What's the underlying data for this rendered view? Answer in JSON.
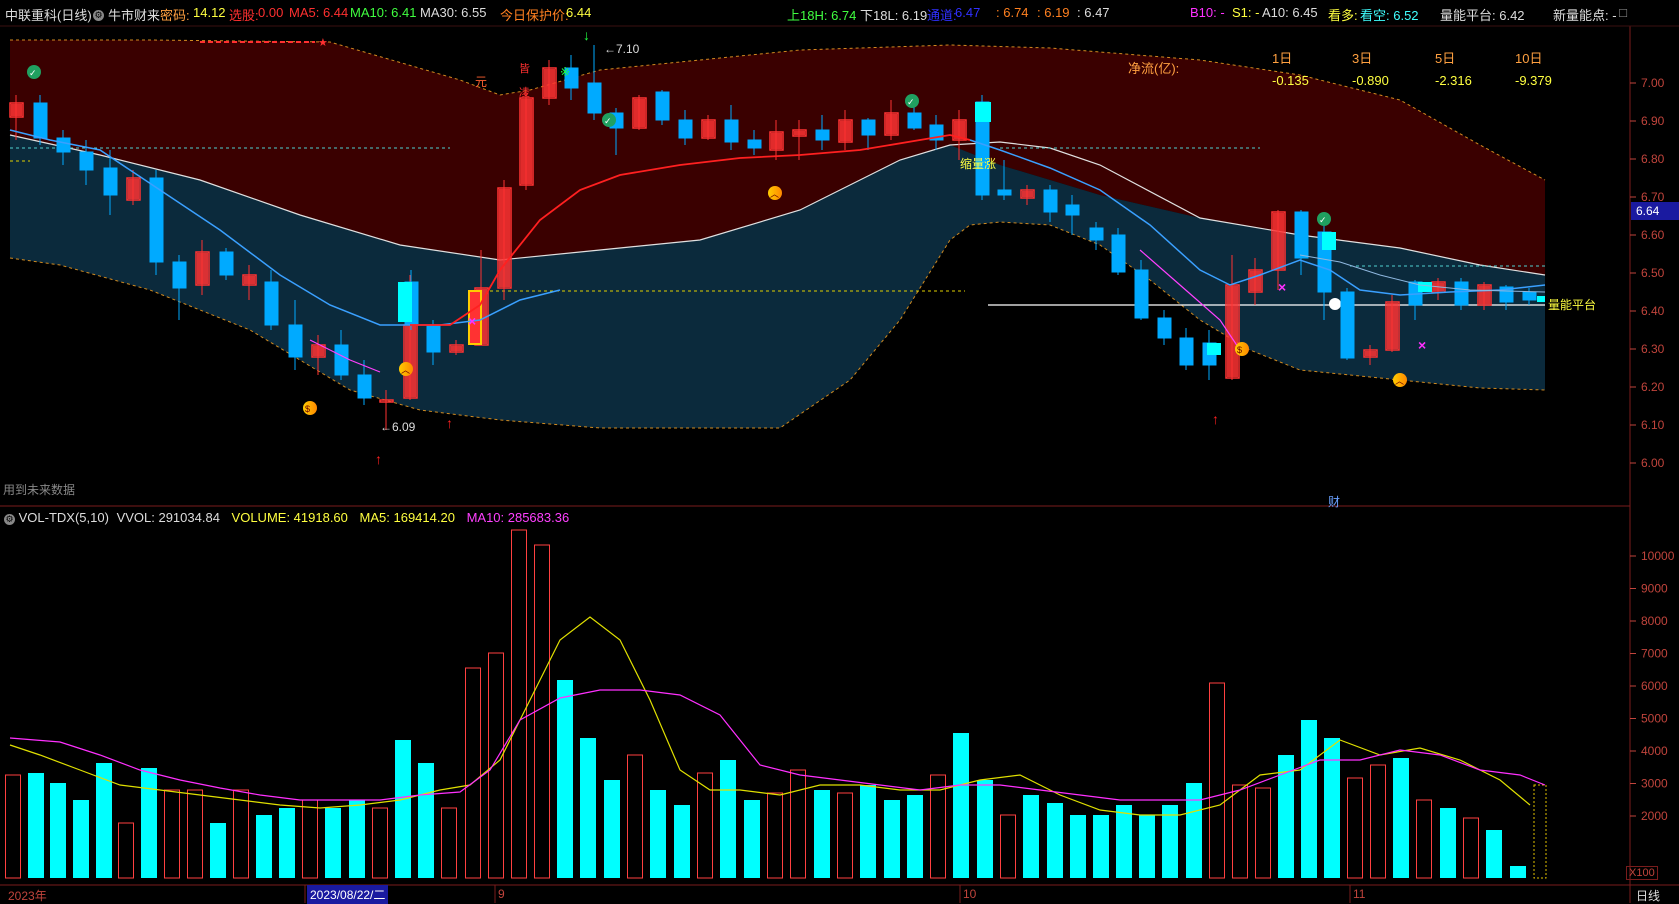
{
  "header": {
    "stock_name": "中联重科(日线)",
    "strategy": "牛市财来",
    "code_label": "密码:",
    "code_value": "14.12",
    "select_label": "选股:",
    "select_value": "0.00",
    "ma5_label": "MA5: 6.44",
    "ma10_label": "MA10: 6.41",
    "ma30_label": "MA30: 6.55",
    "protect_label": "今日保护价:",
    "protect_value": "6.44",
    "upper_label": "上18H: 6.74",
    "lower_label": "下18L: 6.19",
    "trend_label": "通道:",
    "trend_value": "6.47",
    "range_a": ": 6.74",
    "range_b": ": 6.19",
    "range_c": ": 6.47",
    "b10_label": "B10: -",
    "s1_label": "S1: -",
    "a10_label": "A10: 6.45",
    "bull_label": "看多:",
    "bear_label": "看空: 6.52",
    "platform_label": "量能平台: 6.42",
    "new_point_label": "新量能点: -"
  },
  "net_flow": {
    "label": "净流(亿):",
    "periods": [
      "1日",
      "3日",
      "5日",
      "10日"
    ],
    "values": [
      "-0.135",
      "-0.890",
      "-2.316",
      "-9.379"
    ]
  },
  "price_axis": {
    "ticks": [
      "7.00",
      "6.90",
      "6.80",
      "6.70",
      "6.60",
      "6.50",
      "6.40",
      "6.30",
      "6.20",
      "6.10",
      "6.00"
    ],
    "current_price": "6.64"
  },
  "annotations": {
    "high_mark": "7.10",
    "low_mark": "6.09",
    "shrink_rise": "缩量涨",
    "platform": "量能平台",
    "yuan": "元",
    "future_data": "用到未来数据",
    "cai": "财"
  },
  "volume_panel": {
    "indicator": "VOL-TDX(5,10)",
    "vvol": "VVOL: 291034.84",
    "volume": "VOLUME: 41918.60",
    "ma5": "MA5: 169414.20",
    "ma10": "MA10: 285683.36",
    "ticks": [
      "10000",
      "9000",
      "8000",
      "7000",
      "6000",
      "5000",
      "4000",
      "3000",
      "2000"
    ],
    "unit": "X100"
  },
  "time_axis": {
    "year": "2023年",
    "selected_date": "2023/08/22/二",
    "months": [
      "9",
      "10",
      "11"
    ],
    "period": "日线"
  },
  "colors": {
    "up": "#ff3232",
    "down": "#00aaff",
    "cyan": "#00ffff",
    "upper_band": "#3a0000",
    "lower_band": "#0b2a3c",
    "ma5": "#ffff00",
    "ma10": "#ff00ff"
  }
}
